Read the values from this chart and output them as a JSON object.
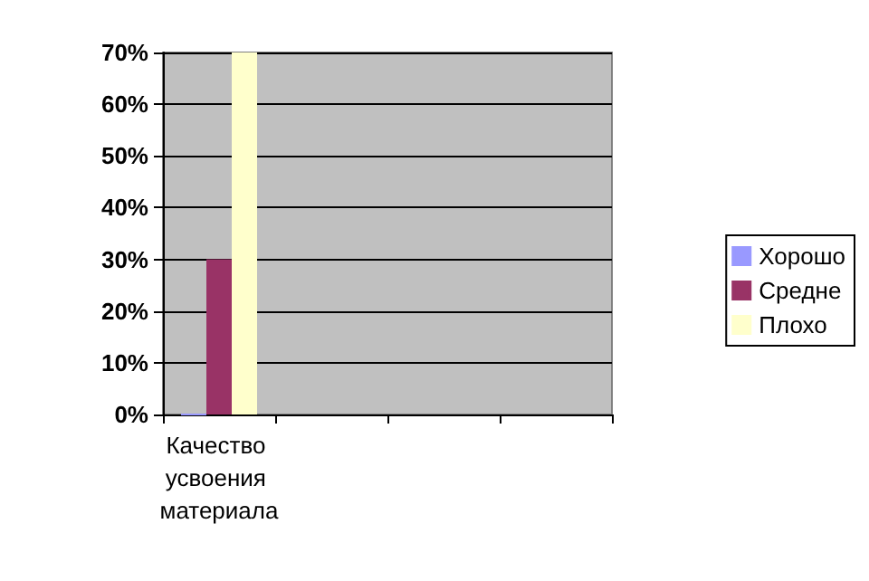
{
  "chart_data": {
    "type": "bar",
    "categories": [
      "Качество усвоения материала",
      null,
      null,
      null
    ],
    "series": [
      {
        "name": "Хорошо",
        "color": "#9999ff",
        "values": [
          0,
          null,
          null,
          null
        ]
      },
      {
        "name": "Средне",
        "color": "#993366",
        "values": [
          30,
          null,
          null,
          null
        ]
      },
      {
        "name": "Плохо",
        "color": "#ffffcc",
        "values": [
          70,
          null,
          null,
          null
        ]
      }
    ],
    "ylim": [
      0,
      70
    ],
    "yticks": [
      {
        "value": 0,
        "label": "0%"
      },
      {
        "value": 10,
        "label": "10%"
      },
      {
        "value": 20,
        "label": "20%"
      },
      {
        "value": 30,
        "label": "30%"
      },
      {
        "value": 40,
        "label": "40%"
      },
      {
        "value": 50,
        "label": "50%"
      },
      {
        "value": 60,
        "label": "60%"
      },
      {
        "value": 70,
        "label": "70%"
      }
    ],
    "grid": "y",
    "legend": "right"
  }
}
